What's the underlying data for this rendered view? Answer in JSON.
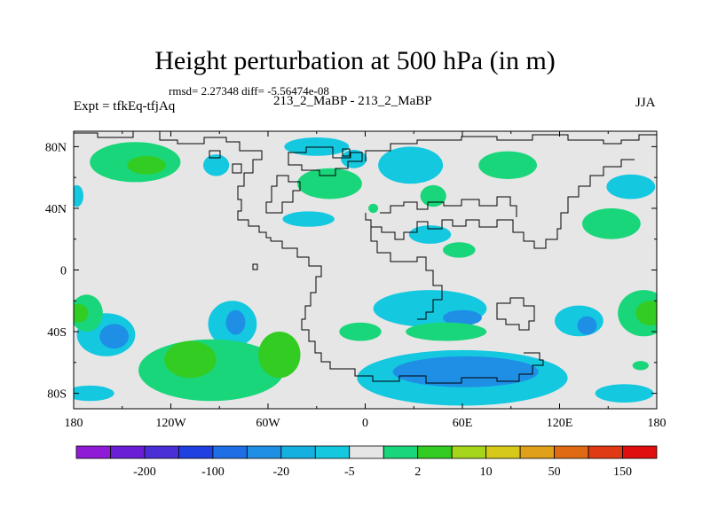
{
  "header": {
    "title": "Height perturbation at 500 hPa (in m)",
    "stats": "rmsd= 2.27348 diff= -5.56474e-08",
    "left_label": "Expt = tfkEq-tfjAq",
    "center_label": "213_2_MaBP - 213_2_MaBP",
    "right_label": "JJA"
  },
  "map": {
    "projection": "cylindrical equidistant",
    "lon_range": [
      -180,
      180
    ],
    "lat_range": [
      -90,
      90
    ],
    "x_ticks": [
      {
        "lon": -180,
        "label": "180"
      },
      {
        "lon": -120,
        "label": "120W"
      },
      {
        "lon": -60,
        "label": "60W"
      },
      {
        "lon": 0,
        "label": "0"
      },
      {
        "lon": 60,
        "label": "60E"
      },
      {
        "lon": 120,
        "label": "120E"
      },
      {
        "lon": 180,
        "label": "180"
      }
    ],
    "y_ticks": [
      {
        "lat": 80,
        "label": "80N"
      },
      {
        "lat": 40,
        "label": "40N"
      },
      {
        "lat": 0,
        "label": "0"
      },
      {
        "lat": -40,
        "label": "40S"
      },
      {
        "lat": -80,
        "label": "80S"
      }
    ],
    "background_color": "#e6e6e6",
    "coastline_color": "#000000",
    "regions": [
      {
        "lon": -142,
        "lat": 70,
        "rx": 28,
        "ry": 13,
        "level": "2"
      },
      {
        "lon": -135,
        "lat": 68,
        "rx": 12,
        "ry": 6,
        "level": "10"
      },
      {
        "lon": -178,
        "lat": 48,
        "rx": 4,
        "ry": 7,
        "level": "-5"
      },
      {
        "lon": -92,
        "lat": 68,
        "rx": 8,
        "ry": 7,
        "level": "-5"
      },
      {
        "lon": 28,
        "lat": 68,
        "rx": 20,
        "ry": 12,
        "level": "-5"
      },
      {
        "lon": -30,
        "lat": 80,
        "rx": 20,
        "ry": 6,
        "level": "-5"
      },
      {
        "lon": -7,
        "lat": 72,
        "rx": 8,
        "ry": 6,
        "level": "-5"
      },
      {
        "lon": -22,
        "lat": 56,
        "rx": 20,
        "ry": 10,
        "level": "2"
      },
      {
        "lon": 88,
        "lat": 68,
        "rx": 18,
        "ry": 9,
        "level": "2"
      },
      {
        "lon": 42,
        "lat": 48,
        "rx": 8,
        "ry": 7,
        "level": "2"
      },
      {
        "lon": 164,
        "lat": 54,
        "rx": 15,
        "ry": 8,
        "level": "-5"
      },
      {
        "lon": 152,
        "lat": 30,
        "rx": 18,
        "ry": 10,
        "level": "2"
      },
      {
        "lon": -35,
        "lat": 33,
        "rx": 16,
        "ry": 5,
        "level": "-5"
      },
      {
        "lon": 40,
        "lat": 23,
        "rx": 13,
        "ry": 6,
        "level": "-5"
      },
      {
        "lon": 5,
        "lat": 40,
        "rx": 3,
        "ry": 3,
        "level": "2"
      },
      {
        "lon": 58,
        "lat": 13,
        "rx": 10,
        "ry": 5,
        "level": "2"
      },
      {
        "lon": 40,
        "lat": -25,
        "rx": 35,
        "ry": 12,
        "level": "-5"
      },
      {
        "lon": 60,
        "lat": -31,
        "rx": 12,
        "ry": 5,
        "level": "-20"
      },
      {
        "lon": -3,
        "lat": -40,
        "rx": 13,
        "ry": 6,
        "level": "2"
      },
      {
        "lon": 50,
        "lat": -40,
        "rx": 25,
        "ry": 6,
        "level": "2"
      },
      {
        "lon": 60,
        "lat": -70,
        "rx": 65,
        "ry": 18,
        "level": "-5"
      },
      {
        "lon": 62,
        "lat": -66,
        "rx": 45,
        "ry": 10,
        "level": "-20"
      },
      {
        "lon": -160,
        "lat": -42,
        "rx": 18,
        "ry": 14,
        "level": "-5"
      },
      {
        "lon": -155,
        "lat": -43,
        "rx": 9,
        "ry": 8,
        "level": "-20"
      },
      {
        "lon": -82,
        "lat": -35,
        "rx": 15,
        "ry": 15,
        "level": "-5"
      },
      {
        "lon": -80,
        "lat": -34,
        "rx": 6,
        "ry": 8,
        "level": "-20"
      },
      {
        "lon": -95,
        "lat": -65,
        "rx": 45,
        "ry": 20,
        "level": "2"
      },
      {
        "lon": -108,
        "lat": -58,
        "rx": 16,
        "ry": 12,
        "level": "10"
      },
      {
        "lon": -53,
        "lat": -55,
        "rx": 13,
        "ry": 15,
        "level": "10"
      },
      {
        "lon": -170,
        "lat": -80,
        "rx": 15,
        "ry": 5,
        "level": "-5"
      },
      {
        "lon": 132,
        "lat": -33,
        "rx": 15,
        "ry": 10,
        "level": "-5"
      },
      {
        "lon": 137,
        "lat": -36,
        "rx": 6,
        "ry": 6,
        "level": "-20"
      },
      {
        "lon": 172,
        "lat": -28,
        "rx": 16,
        "ry": 15,
        "level": "2"
      },
      {
        "lon": 176,
        "lat": -28,
        "rx": 9,
        "ry": 8,
        "level": "10"
      },
      {
        "lon": -172,
        "lat": -28,
        "rx": 10,
        "ry": 12,
        "level": "2"
      },
      {
        "lon": -177,
        "lat": -28,
        "rx": 6,
        "ry": 6,
        "level": "10"
      },
      {
        "lon": 170,
        "lat": -62,
        "rx": 5,
        "ry": 3,
        "level": "2"
      },
      {
        "lon": 160,
        "lat": -80,
        "rx": 18,
        "ry": 6,
        "level": "-5"
      }
    ]
  },
  "colorbar": {
    "colors": [
      "#8f1bd6",
      "#6a1fd6",
      "#4a2fd6",
      "#2040e0",
      "#1e6ee6",
      "#1f8fe6",
      "#16b0e0",
      "#14c8e0",
      "#e6e6e6",
      "#1ad67a",
      "#33cc22",
      "#a6d61c",
      "#d6c91a",
      "#e0a01a",
      "#e06a14",
      "#e03a14",
      "#e00e0e"
    ],
    "labels": [
      {
        "after_box": 2,
        "text": "-200"
      },
      {
        "after_box": 4,
        "text": "-100"
      },
      {
        "after_box": 6,
        "text": "-20"
      },
      {
        "after_box": 8,
        "text": "-5"
      },
      {
        "after_box": 10,
        "text": "2"
      },
      {
        "after_box": 12,
        "text": "10"
      },
      {
        "after_box": 14,
        "text": "50"
      },
      {
        "after_box": 16,
        "text": "150"
      }
    ],
    "level_colors": {
      "-20": "#1f8fe6",
      "-5": "#14c8e0",
      "2": "#1ad67a",
      "10": "#33cc22"
    }
  }
}
